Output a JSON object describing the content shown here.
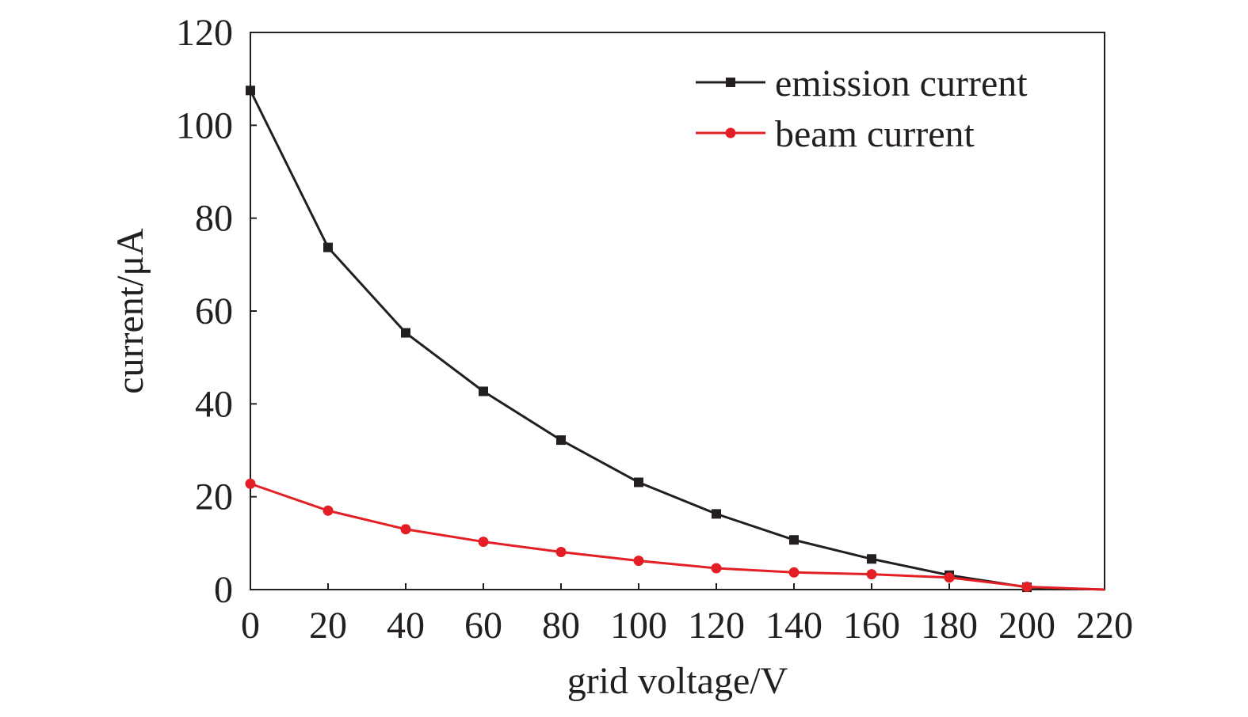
{
  "chart_data": {
    "type": "line",
    "xlabel": "grid voltage/V",
    "ylabel": "current/μA",
    "xlim": [
      0,
      220
    ],
    "ylim": [
      0,
      120
    ],
    "xticks": [
      0,
      20,
      40,
      60,
      80,
      100,
      120,
      140,
      160,
      180,
      200,
      220
    ],
    "yticks": [
      0,
      20,
      40,
      60,
      80,
      100,
      120
    ],
    "xtick_labels": [
      "0",
      "20",
      "40",
      "60",
      "80",
      "100",
      "120",
      "140",
      "160",
      "180",
      "200",
      "220"
    ],
    "ytick_labels": [
      "0",
      "20",
      "40",
      "60",
      "80",
      "100",
      "120"
    ],
    "grid": false,
    "legend_position": "top-right",
    "x": [
      0,
      20,
      40,
      60,
      80,
      100,
      120,
      140,
      160,
      180,
      200
    ],
    "series": [
      {
        "name": "emission current",
        "color": "#231f20",
        "marker": "square",
        "values": [
          107.5,
          73.7,
          55.3,
          42.7,
          32.2,
          23.1,
          16.3,
          10.7,
          6.6,
          3.1,
          0.5
        ],
        "tail_to": [
          220,
          0
        ]
      },
      {
        "name": "beam current",
        "color": "#e31e24",
        "marker": "circle",
        "values": [
          22.8,
          17.0,
          13.0,
          10.3,
          8.1,
          6.2,
          4.6,
          3.7,
          3.3,
          2.6,
          0.6
        ],
        "tail_to": [
          220,
          0
        ]
      }
    ]
  }
}
